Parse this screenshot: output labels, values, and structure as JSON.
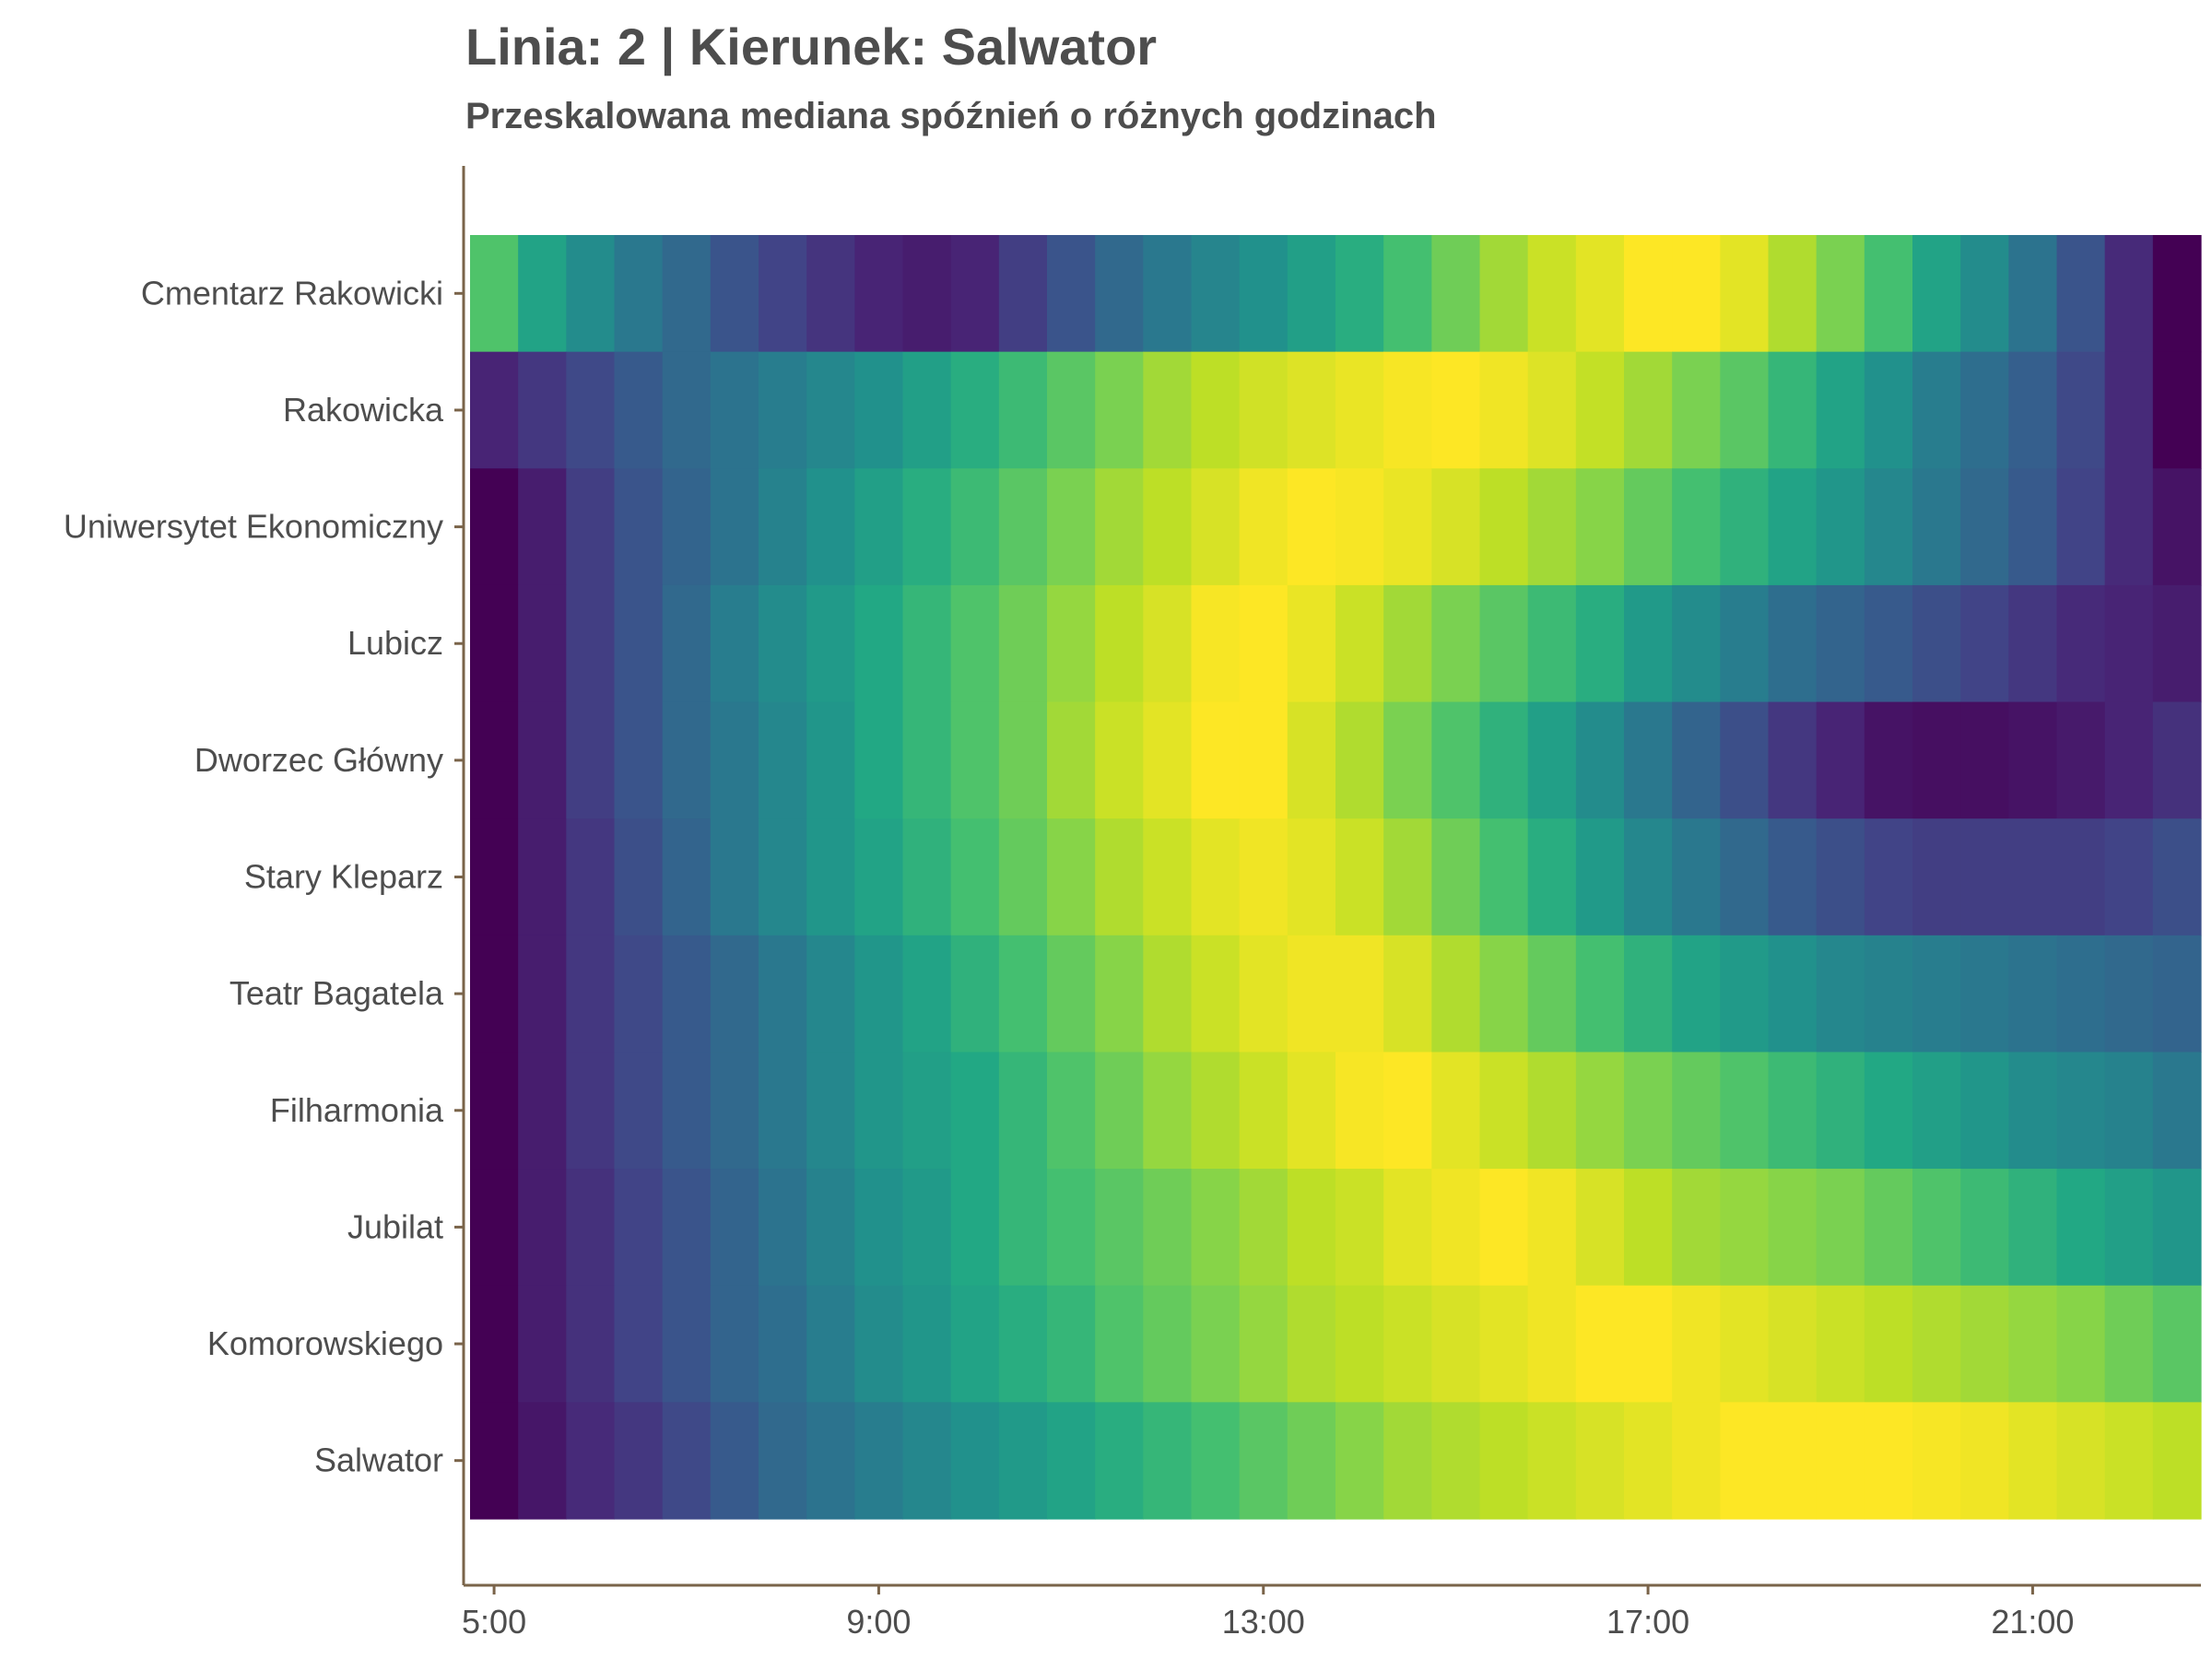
{
  "title": "Linia: 2 | Kierunek: Salwator",
  "subtitle": "Przeskalowana mediana spóźnień o różnych godzinach",
  "axis_color": "#7a644a",
  "text_color": "#4d4d4d",
  "colormap": "viridis",
  "chart_data": {
    "type": "heatmap",
    "title": "Linia: 2 | Kierunek: Salwator",
    "subtitle": "Przeskalowana mediana spóźnień o różnych godzinach",
    "xlabel": "",
    "ylabel": "",
    "x_ticks": [
      "5:00",
      "9:00",
      "13:00",
      "17:00",
      "21:00"
    ],
    "x_tick_hours": [
      5,
      9,
      13,
      17,
      21
    ],
    "x_range_hours": [
      4.75,
      22.75
    ],
    "hours": [
      5.0,
      5.5,
      6.0,
      6.5,
      7.0,
      7.5,
      8.0,
      8.5,
      9.0,
      9.5,
      10.0,
      10.5,
      11.0,
      11.5,
      12.0,
      12.5,
      13.0,
      13.5,
      14.0,
      14.5,
      15.0,
      15.5,
      16.0,
      16.5,
      17.0,
      17.5,
      18.0,
      18.5,
      19.0,
      19.5,
      20.0,
      20.5,
      21.0,
      21.5,
      22.0,
      22.5
    ],
    "value_range": [
      0,
      1
    ],
    "stops": [
      "Cmentarz Rakowicki",
      "Rakowicka",
      "Uniwersytet Ekonomiczny",
      "Lubicz",
      "Dworzec Główny",
      "Stary Kleparz",
      "Teatr Bagatela",
      "Filharmonia",
      "Jubilat",
      "Komorowskiego",
      "Salwator"
    ],
    "values": [
      [
        0.72,
        0.58,
        0.48,
        0.4,
        0.34,
        0.26,
        0.2,
        0.15,
        0.1,
        0.08,
        0.1,
        0.18,
        0.26,
        0.34,
        0.4,
        0.45,
        0.5,
        0.56,
        0.62,
        0.7,
        0.78,
        0.86,
        0.92,
        0.96,
        1.0,
        1.0,
        0.96,
        0.88,
        0.8,
        0.7,
        0.58,
        0.48,
        0.38,
        0.26,
        0.12,
        0.0
      ],
      [
        0.1,
        0.16,
        0.22,
        0.28,
        0.34,
        0.38,
        0.42,
        0.46,
        0.5,
        0.56,
        0.62,
        0.68,
        0.74,
        0.8,
        0.86,
        0.9,
        0.93,
        0.95,
        0.97,
        0.99,
        1.0,
        0.98,
        0.95,
        0.91,
        0.86,
        0.8,
        0.74,
        0.66,
        0.58,
        0.5,
        0.42,
        0.36,
        0.3,
        0.22,
        0.12,
        0.0
      ],
      [
        0.0,
        0.08,
        0.18,
        0.26,
        0.32,
        0.38,
        0.44,
        0.5,
        0.56,
        0.62,
        0.68,
        0.74,
        0.8,
        0.86,
        0.9,
        0.94,
        0.98,
        1.0,
        0.99,
        0.97,
        0.94,
        0.9,
        0.86,
        0.82,
        0.76,
        0.7,
        0.64,
        0.58,
        0.52,
        0.46,
        0.4,
        0.34,
        0.28,
        0.2,
        0.12,
        0.05
      ],
      [
        0.0,
        0.08,
        0.18,
        0.26,
        0.34,
        0.42,
        0.48,
        0.54,
        0.6,
        0.66,
        0.72,
        0.78,
        0.84,
        0.9,
        0.94,
        0.99,
        1.0,
        0.97,
        0.92,
        0.86,
        0.8,
        0.74,
        0.68,
        0.62,
        0.54,
        0.48,
        0.42,
        0.36,
        0.32,
        0.28,
        0.24,
        0.2,
        0.16,
        0.12,
        0.1,
        0.08
      ],
      [
        0.0,
        0.08,
        0.18,
        0.26,
        0.34,
        0.4,
        0.46,
        0.52,
        0.6,
        0.66,
        0.72,
        0.78,
        0.86,
        0.92,
        0.96,
        1.0,
        1.0,
        0.94,
        0.88,
        0.8,
        0.72,
        0.64,
        0.56,
        0.48,
        0.4,
        0.32,
        0.24,
        0.16,
        0.1,
        0.05,
        0.04,
        0.04,
        0.05,
        0.07,
        0.1,
        0.14
      ],
      [
        0.0,
        0.08,
        0.16,
        0.24,
        0.32,
        0.4,
        0.46,
        0.52,
        0.58,
        0.64,
        0.7,
        0.76,
        0.82,
        0.88,
        0.92,
        0.96,
        0.98,
        0.96,
        0.92,
        0.86,
        0.78,
        0.7,
        0.62,
        0.54,
        0.46,
        0.4,
        0.34,
        0.28,
        0.24,
        0.2,
        0.18,
        0.18,
        0.18,
        0.18,
        0.2,
        0.24
      ],
      [
        0.0,
        0.08,
        0.16,
        0.22,
        0.28,
        0.34,
        0.4,
        0.46,
        0.52,
        0.58,
        0.64,
        0.7,
        0.76,
        0.82,
        0.88,
        0.92,
        0.96,
        0.98,
        0.98,
        0.94,
        0.88,
        0.82,
        0.76,
        0.7,
        0.64,
        0.58,
        0.54,
        0.5,
        0.46,
        0.44,
        0.42,
        0.4,
        0.38,
        0.36,
        0.34,
        0.32
      ],
      [
        0.0,
        0.08,
        0.16,
        0.22,
        0.28,
        0.34,
        0.4,
        0.46,
        0.52,
        0.56,
        0.6,
        0.66,
        0.72,
        0.78,
        0.84,
        0.88,
        0.92,
        0.96,
        0.99,
        1.0,
        0.96,
        0.92,
        0.88,
        0.84,
        0.8,
        0.76,
        0.72,
        0.68,
        0.64,
        0.6,
        0.56,
        0.52,
        0.48,
        0.46,
        0.44,
        0.4
      ],
      [
        0.0,
        0.08,
        0.14,
        0.2,
        0.26,
        0.32,
        0.38,
        0.44,
        0.5,
        0.54,
        0.6,
        0.66,
        0.7,
        0.74,
        0.78,
        0.82,
        0.86,
        0.9,
        0.92,
        0.96,
        0.98,
        1.0,
        0.98,
        0.94,
        0.9,
        0.86,
        0.84,
        0.82,
        0.8,
        0.76,
        0.72,
        0.68,
        0.64,
        0.6,
        0.56,
        0.52
      ],
      [
        0.0,
        0.08,
        0.14,
        0.2,
        0.26,
        0.32,
        0.36,
        0.42,
        0.48,
        0.52,
        0.58,
        0.62,
        0.66,
        0.72,
        0.76,
        0.8,
        0.84,
        0.88,
        0.9,
        0.92,
        0.94,
        0.96,
        0.98,
        1.0,
        1.0,
        0.98,
        0.96,
        0.94,
        0.92,
        0.9,
        0.88,
        0.86,
        0.84,
        0.82,
        0.78,
        0.74
      ],
      [
        0.0,
        0.06,
        0.12,
        0.16,
        0.22,
        0.28,
        0.34,
        0.38,
        0.42,
        0.46,
        0.5,
        0.54,
        0.58,
        0.62,
        0.66,
        0.7,
        0.74,
        0.78,
        0.82,
        0.86,
        0.88,
        0.9,
        0.92,
        0.94,
        0.96,
        0.98,
        1.0,
        1.0,
        1.0,
        1.0,
        0.99,
        0.98,
        0.96,
        0.94,
        0.92,
        0.9
      ]
    ],
    "legend": "none",
    "grid": false
  }
}
